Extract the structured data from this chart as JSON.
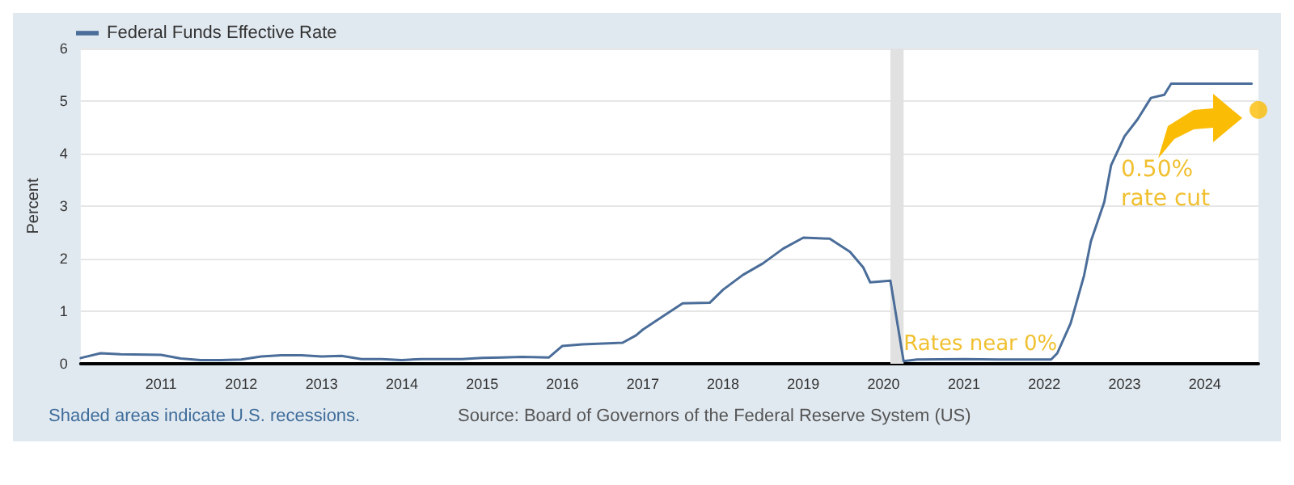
{
  "chart_data": {
    "type": "line",
    "ylabel": "Percent",
    "xlim": [
      "2010-01",
      "2024-09"
    ],
    "ylim": [
      0,
      6
    ],
    "yticks": [
      0,
      1,
      2,
      3,
      4,
      5,
      6
    ],
    "xticks": [
      "2011",
      "2012",
      "2013",
      "2014",
      "2015",
      "2016",
      "2017",
      "2018",
      "2019",
      "2020",
      "2021",
      "2022",
      "2023",
      "2024"
    ],
    "grid": "y",
    "legend": "top left",
    "marker": "none",
    "line_style": "solid",
    "bands": [
      {
        "axis": "x",
        "from": "2020-02",
        "to": "2020-04",
        "color": "#e1e1e1"
      }
    ],
    "annotations": [
      {
        "text": "Rates near 0%",
        "x": "2020-04",
        "y": 0.1
      },
      "0.50% rate cut",
      "Shaded areas indicate U.S. recessions.",
      "Source: Board of Governors of the Federal Reserve System (US)"
    ],
    "series": [
      {
        "name": "Federal Funds Effective Rate",
        "color": "#4a6d99",
        "x": [
          "2010-01",
          "2010-04",
          "2010-07",
          "2011-01",
          "2011-04",
          "2011-07",
          "2011-10",
          "2012-01",
          "2012-04",
          "2012-07",
          "2012-10",
          "2013-01",
          "2013-04",
          "2013-07",
          "2013-10",
          "2014-01",
          "2014-04",
          "2014-07",
          "2014-10",
          "2015-01",
          "2015-04",
          "2015-07",
          "2015-11",
          "2016-01",
          "2016-04",
          "2016-10",
          "2016-12",
          "2017-01",
          "2017-04",
          "2017-07",
          "2017-11",
          "2018-01",
          "2018-04",
          "2018-07",
          "2018-10",
          "2019-01",
          "2019-05",
          "2019-08",
          "2019-10",
          "2019-11",
          "2020-02",
          "2020-04",
          "2020-06",
          "2021-01",
          "2021-06",
          "2022-02",
          "2022-03",
          "2022-05",
          "2022-07",
          "2022-08",
          "2022-10",
          "2022-11",
          "2023-01",
          "2023-03",
          "2023-05",
          "2023-07",
          "2023-08",
          "2024-08"
        ],
        "values": [
          0.11,
          0.2,
          0.18,
          0.17,
          0.1,
          0.07,
          0.07,
          0.08,
          0.14,
          0.16,
          0.16,
          0.14,
          0.15,
          0.09,
          0.09,
          0.07,
          0.09,
          0.09,
          0.09,
          0.11,
          0.12,
          0.13,
          0.12,
          0.34,
          0.37,
          0.4,
          0.54,
          0.65,
          0.9,
          1.15,
          1.16,
          1.41,
          1.69,
          1.91,
          2.19,
          2.4,
          2.38,
          2.13,
          1.83,
          1.55,
          1.58,
          0.05,
          0.08,
          0.09,
          0.08,
          0.08,
          0.2,
          0.77,
          1.68,
          2.33,
          3.08,
          3.78,
          4.33,
          4.65,
          5.06,
          5.12,
          5.33,
          5.33
        ]
      },
      {
        "type": "scatter",
        "marker": "circle",
        "color": "#fbbc05",
        "x": [
          "2024-09"
        ],
        "values": [
          4.83
        ]
      }
    ]
  }
}
